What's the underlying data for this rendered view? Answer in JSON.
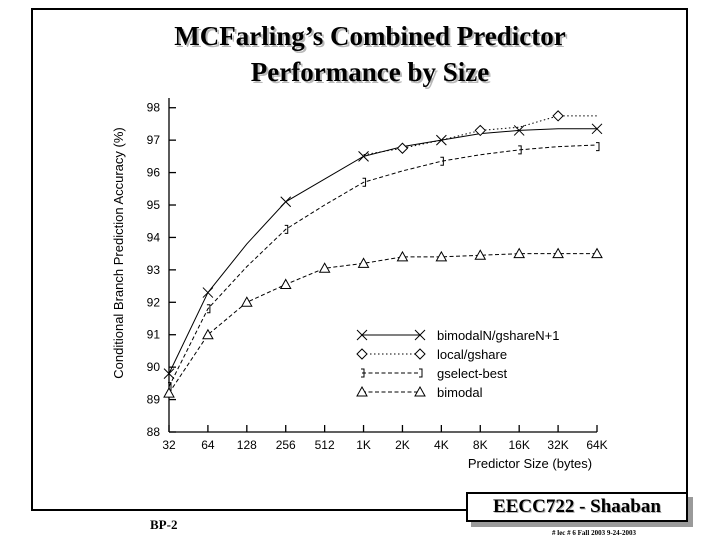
{
  "slide": {
    "title_line1": "MCFarling’s Combined Predictor",
    "title_line2": "Performance by Size",
    "slide_number": "BP-2",
    "badge": "EECC722 - Shaaban",
    "footer": "# lec # 6 Fall 2003 9-24-2003"
  },
  "chart_data": {
    "type": "line",
    "xlabel": "Predictor Size (bytes)",
    "ylabel": "Conditional Branch Prediction Accuracy (%)",
    "categories": [
      "32",
      "64",
      "128",
      "256",
      "512",
      "1K",
      "2K",
      "4K",
      "8K",
      "16K",
      "32K",
      "64K"
    ],
    "y_ticks": [
      "88",
      "89",
      "90",
      "91",
      "92",
      "93",
      "94",
      "95",
      "96",
      "97",
      "98"
    ],
    "ylim": [
      88,
      98.3
    ],
    "grid": false,
    "legend_position": "lower-right",
    "series": [
      {
        "name": "bimodalN/gshareN+1",
        "marker": "x",
        "dash": "solid",
        "values": [
          89.8,
          92.3,
          null,
          95.1,
          null,
          96.5,
          null,
          97.0,
          null,
          97.3,
          null,
          97.35
        ],
        "line": [
          89.8,
          92.3,
          93.8,
          95.1,
          95.8,
          96.5,
          96.8,
          97.0,
          97.2,
          97.3,
          97.35,
          97.35
        ]
      },
      {
        "name": "local/gshare",
        "marker": "diamond",
        "dash": "dotted",
        "values": [
          null,
          null,
          null,
          null,
          null,
          null,
          96.75,
          null,
          97.3,
          null,
          97.75,
          null
        ],
        "line": [
          null,
          null,
          null,
          null,
          null,
          96.55,
          96.75,
          97.0,
          97.3,
          97.4,
          97.75,
          97.75
        ]
      },
      {
        "name": "gselect-best",
        "marker": "bracket",
        "dash": "dashed",
        "values": [
          89.4,
          91.8,
          null,
          94.25,
          null,
          95.7,
          null,
          96.35,
          null,
          96.7,
          null,
          96.8
        ],
        "line": [
          89.4,
          91.8,
          93.1,
          94.25,
          95.0,
          95.7,
          96.05,
          96.35,
          96.55,
          96.7,
          96.8,
          96.85
        ]
      },
      {
        "name": "bimodal",
        "marker": "triangle",
        "dash": "dashed",
        "values": [
          89.2,
          91.0,
          92.0,
          92.55,
          93.05,
          93.2,
          93.4,
          93.4,
          93.45,
          93.5,
          93.5,
          93.5
        ],
        "line": [
          89.2,
          91.0,
          92.0,
          92.55,
          93.05,
          93.2,
          93.4,
          93.4,
          93.45,
          93.5,
          93.5,
          93.5
        ]
      }
    ]
  }
}
